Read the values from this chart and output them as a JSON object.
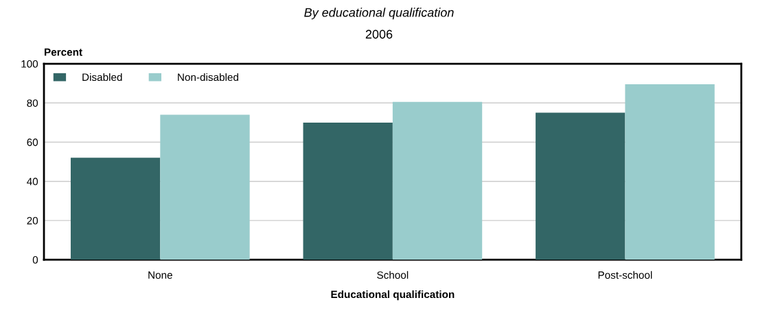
{
  "chart_data": {
    "type": "bar",
    "title": "By educational qualification",
    "subtitle": "2006",
    "xlabel": "Educational qualification",
    "ylabel": "Percent",
    "categories": [
      "None",
      "School",
      "Post-school"
    ],
    "series": [
      {
        "name": "Disabled",
        "color": "#336666",
        "values": [
          52,
          70,
          75
        ]
      },
      {
        "name": "Non-disabled",
        "color": "#99cccc",
        "values": [
          74,
          80.5,
          89.5
        ]
      }
    ],
    "ylim": [
      0,
      100
    ],
    "yticks": [
      0,
      20,
      40,
      60,
      80,
      100
    ],
    "grid": "y",
    "legend": "top left"
  }
}
